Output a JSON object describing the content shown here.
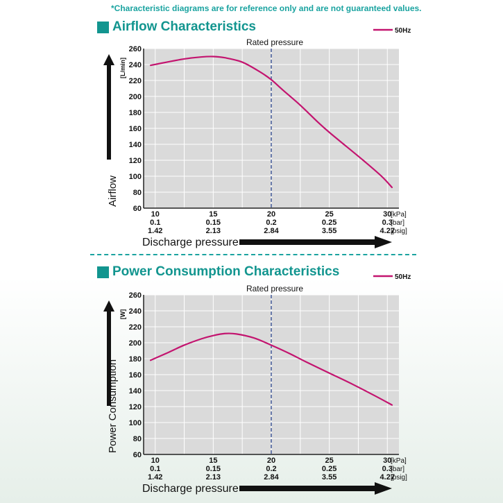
{
  "note": "*Characteristic diagrams are for reference only and are not guaranteed values.",
  "colors": {
    "curve": "#c3146f",
    "accent": "#12958f",
    "rated_line": "#1f3c8a",
    "plot_bg": "#dadada"
  },
  "charts": [
    {
      "title": "Airflow Characteristics"
    },
    {
      "title": "Power Consumption Characteristics"
    }
  ],
  "chart_data": [
    {
      "type": "line",
      "title": "Airflow Characteristics",
      "ylabel": "Airflow",
      "y_unit": "[L/min]",
      "xlabel": "Discharge pressure",
      "rated_label": "Rated pressure",
      "rated_x": 20,
      "legend": "50Hz",
      "xlim": [
        9,
        31
      ],
      "ylim": [
        60,
        260
      ],
      "yticks": [
        "60",
        "80",
        "100",
        "120",
        "140",
        "160",
        "180",
        "200",
        "220",
        "240",
        "260"
      ],
      "xticks": [
        {
          "kpa": "10",
          "bar": "0.1",
          "psig": "1.42"
        },
        {
          "kpa": "15",
          "bar": "0.15",
          "psig": "2.13"
        },
        {
          "kpa": "20",
          "bar": "0.2",
          "psig": "2.84"
        },
        {
          "kpa": "25",
          "bar": "0.25",
          "psig": "3.55"
        },
        {
          "kpa": "30",
          "bar": "0.3",
          "psig": "4.27"
        }
      ],
      "x_units": [
        "[kPa]",
        "[bar]",
        "[psig]"
      ],
      "series": [
        {
          "name": "50Hz",
          "x": [
            9.6,
            11,
            12.5,
            14,
            15,
            16,
            17.5,
            19,
            20,
            21,
            22.5,
            24,
            25,
            26.5,
            28,
            29.5,
            30.4
          ],
          "y": [
            239,
            243,
            247,
            249.5,
            250,
            248.5,
            243,
            231,
            221,
            208,
            189,
            168,
            155,
            137,
            119,
            100,
            86
          ]
        }
      ]
    },
    {
      "type": "line",
      "title": "Power Consumption Characteristics",
      "ylabel": "Power Consumption",
      "y_unit": "[W]",
      "xlabel": "Discharge pressure",
      "rated_label": "Rated pressure",
      "rated_x": 20,
      "legend": "50Hz",
      "xlim": [
        9,
        31
      ],
      "ylim": [
        60,
        260
      ],
      "yticks": [
        "60",
        "80",
        "100",
        "120",
        "140",
        "160",
        "180",
        "200",
        "220",
        "240",
        "260"
      ],
      "xticks": [
        {
          "kpa": "10",
          "bar": "0.1",
          "psig": "1.42"
        },
        {
          "kpa": "15",
          "bar": "0.15",
          "psig": "2.13"
        },
        {
          "kpa": "20",
          "bar": "0.2",
          "psig": "2.84"
        },
        {
          "kpa": "25",
          "bar": "0.25",
          "psig": "3.55"
        },
        {
          "kpa": "30",
          "bar": "0.3",
          "psig": "4.27"
        }
      ],
      "x_units": [
        "[kPa]",
        "[bar]",
        "[psig]"
      ],
      "series": [
        {
          "name": "50Hz",
          "x": [
            9.6,
            11,
            12.5,
            14,
            15,
            16,
            17,
            18.5,
            20,
            21.5,
            23,
            25,
            27,
            29,
            30.4
          ],
          "y": [
            178,
            187,
            197,
            205,
            209,
            211.5,
            211,
            206,
            197,
            187,
            176,
            162,
            148,
            133,
            122
          ]
        }
      ]
    }
  ]
}
